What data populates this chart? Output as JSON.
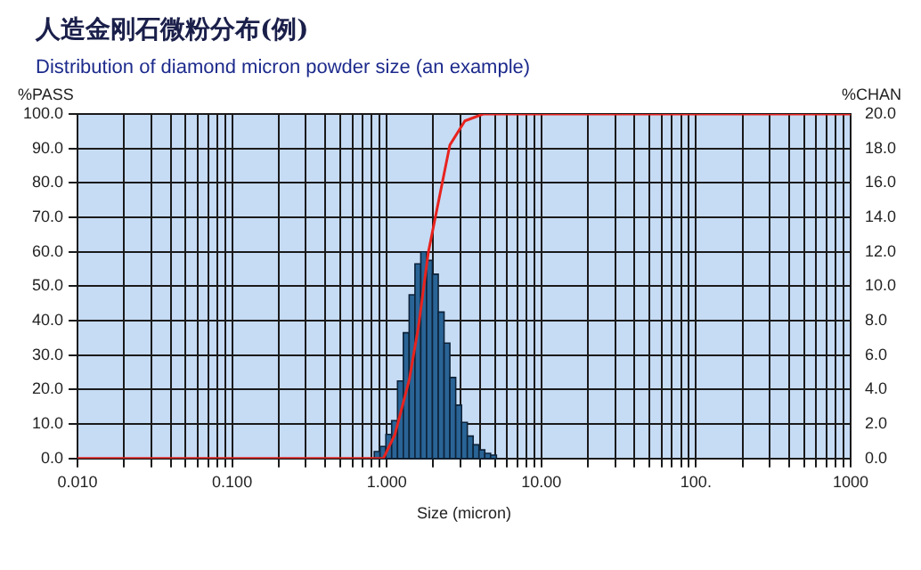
{
  "chart_data": {
    "type": "histogram",
    "title": "人造金刚石微粉分布(例)",
    "subtitle": "Distribution of diamond micron powder size (an example)",
    "xlabel": "Size (micron)",
    "ylabel": "%PASS",
    "y2label": "%CHAN",
    "log": "x",
    "grid": true,
    "legend": false,
    "series": [
      {
        "axis": "y2",
        "color": "#2a6496",
        "bins": [
          0.83,
          0.905,
          0.987,
          1.076,
          1.174,
          1.28,
          1.396,
          1.522,
          1.66,
          1.81,
          1.974,
          2.153,
          2.348,
          2.56,
          2.792,
          3.045,
          3.32,
          3.621,
          3.948,
          4.306,
          4.695,
          5.12
        ],
        "values": [
          0.4,
          0.7,
          1.4,
          2.2,
          4.5,
          7.3,
          9.5,
          11.3,
          12.0,
          11.5,
          10.7,
          8.5,
          6.7,
          4.7,
          3.1,
          2.1,
          1.3,
          0.8,
          0.5,
          0.3,
          0.2
        ]
      },
      {
        "type": "line",
        "axis": "y",
        "color": "#e8231e",
        "x": [
          0.01,
          0.95,
          1.13,
          1.4,
          1.6,
          1.86,
          2.17,
          2.56,
          3.2,
          4.2,
          1000
        ],
        "values": [
          0,
          0,
          7,
          23,
          38,
          60,
          75,
          91,
          98,
          100,
          100
        ]
      }
    ],
    "xlim": [
      0.01,
      1000
    ],
    "xticks": [
      {
        "value": 0.01,
        "label": "0.010"
      },
      {
        "value": 0.02,
        "label": null
      },
      {
        "value": 0.03,
        "label": null
      },
      {
        "value": 0.04,
        "label": null
      },
      {
        "value": 0.05,
        "label": null
      },
      {
        "value": 0.06,
        "label": null
      },
      {
        "value": 0.07,
        "label": null
      },
      {
        "value": 0.08,
        "label": null
      },
      {
        "value": 0.09,
        "label": null
      },
      {
        "value": 0.1,
        "label": "0.100"
      },
      {
        "value": 0.2,
        "label": null
      },
      {
        "value": 0.3,
        "label": null
      },
      {
        "value": 0.4,
        "label": null
      },
      {
        "value": 0.5,
        "label": null
      },
      {
        "value": 0.6,
        "label": null
      },
      {
        "value": 0.7,
        "label": null
      },
      {
        "value": 0.8,
        "label": null
      },
      {
        "value": 0.9,
        "label": null
      },
      {
        "value": 1,
        "label": "1.000"
      },
      {
        "value": 2,
        "label": null
      },
      {
        "value": 3,
        "label": null
      },
      {
        "value": 4,
        "label": null
      },
      {
        "value": 5,
        "label": null
      },
      {
        "value": 6,
        "label": null
      },
      {
        "value": 7,
        "label": null
      },
      {
        "value": 8,
        "label": null
      },
      {
        "value": 9,
        "label": null
      },
      {
        "value": 10,
        "label": "10.00"
      },
      {
        "value": 20,
        "label": null
      },
      {
        "value": 30,
        "label": null
      },
      {
        "value": 40,
        "label": null
      },
      {
        "value": 50,
        "label": null
      },
      {
        "value": 60,
        "label": null
      },
      {
        "value": 70,
        "label": null
      },
      {
        "value": 80,
        "label": null
      },
      {
        "value": 90,
        "label": null
      },
      {
        "value": 100,
        "label": "100."
      },
      {
        "value": 200,
        "label": null
      },
      {
        "value": 300,
        "label": null
      },
      {
        "value": 400,
        "label": null
      },
      {
        "value": 500,
        "label": null
      },
      {
        "value": 600,
        "label": null
      },
      {
        "value": 700,
        "label": null
      },
      {
        "value": 800,
        "label": null
      },
      {
        "value": 900,
        "label": null
      },
      {
        "value": 1000,
        "label": "1000"
      }
    ],
    "ylim": [
      0,
      100
    ],
    "yticks": [
      {
        "value": 0,
        "label": "0.0"
      },
      {
        "value": 10,
        "label": "10.0"
      },
      {
        "value": 20,
        "label": "20.0"
      },
      {
        "value": 30,
        "label": "30.0"
      },
      {
        "value": 40,
        "label": "40.0"
      },
      {
        "value": 50,
        "label": "50.0"
      },
      {
        "value": 60,
        "label": "60.0"
      },
      {
        "value": 70,
        "label": "70.0"
      },
      {
        "value": 80,
        "label": "80.0"
      },
      {
        "value": 90,
        "label": "90.0"
      },
      {
        "value": 100,
        "label": "100.0"
      }
    ],
    "y2lim": [
      0,
      20
    ],
    "y2ticks": [
      {
        "value": 0,
        "label": "0.0"
      },
      {
        "value": 2,
        "label": "2.0"
      },
      {
        "value": 4,
        "label": "4.0"
      },
      {
        "value": 6,
        "label": "6.0"
      },
      {
        "value": 8,
        "label": "8.0"
      },
      {
        "value": 10,
        "label": "10.0"
      },
      {
        "value": 12,
        "label": "12.0"
      },
      {
        "value": 14,
        "label": "14.0"
      },
      {
        "value": 16,
        "label": "16.0"
      },
      {
        "value": 18,
        "label": "18.0"
      },
      {
        "value": 20,
        "label": "20.0"
      }
    ]
  }
}
